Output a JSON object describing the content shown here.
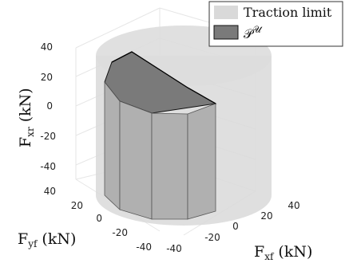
{
  "chart_data": {
    "type": "3d-surface",
    "xlabel": {
      "main": "F",
      "sub": "xf",
      "unit": "(kN)"
    },
    "ylabel": {
      "main": "F",
      "sub": "yf",
      "unit": "(kN)"
    },
    "zlabel": {
      "main": "F",
      "sub": "xr",
      "unit": "(kN)"
    },
    "x_ticks": [
      "-40",
      "-20",
      "0",
      "20",
      "40"
    ],
    "y_ticks": [
      "40",
      "20",
      "0",
      "-20",
      "-40"
    ],
    "z_ticks": [
      "40",
      "20",
      "0",
      "-20",
      "-40"
    ],
    "grid": true,
    "legend_position": "top-right",
    "series": [
      {
        "name": "Traction limit",
        "shape": "cylinder",
        "color": "#d9d9d9"
      },
      {
        "name": "P^U",
        "shape": "polytope",
        "color": "#7a7a7a",
        "side_color": "#b3b3b3"
      }
    ]
  },
  "legend": {
    "items": [
      {
        "label": "Traction limit"
      },
      {
        "label": "𝒫",
        "superscript": "𝒰"
      }
    ]
  }
}
